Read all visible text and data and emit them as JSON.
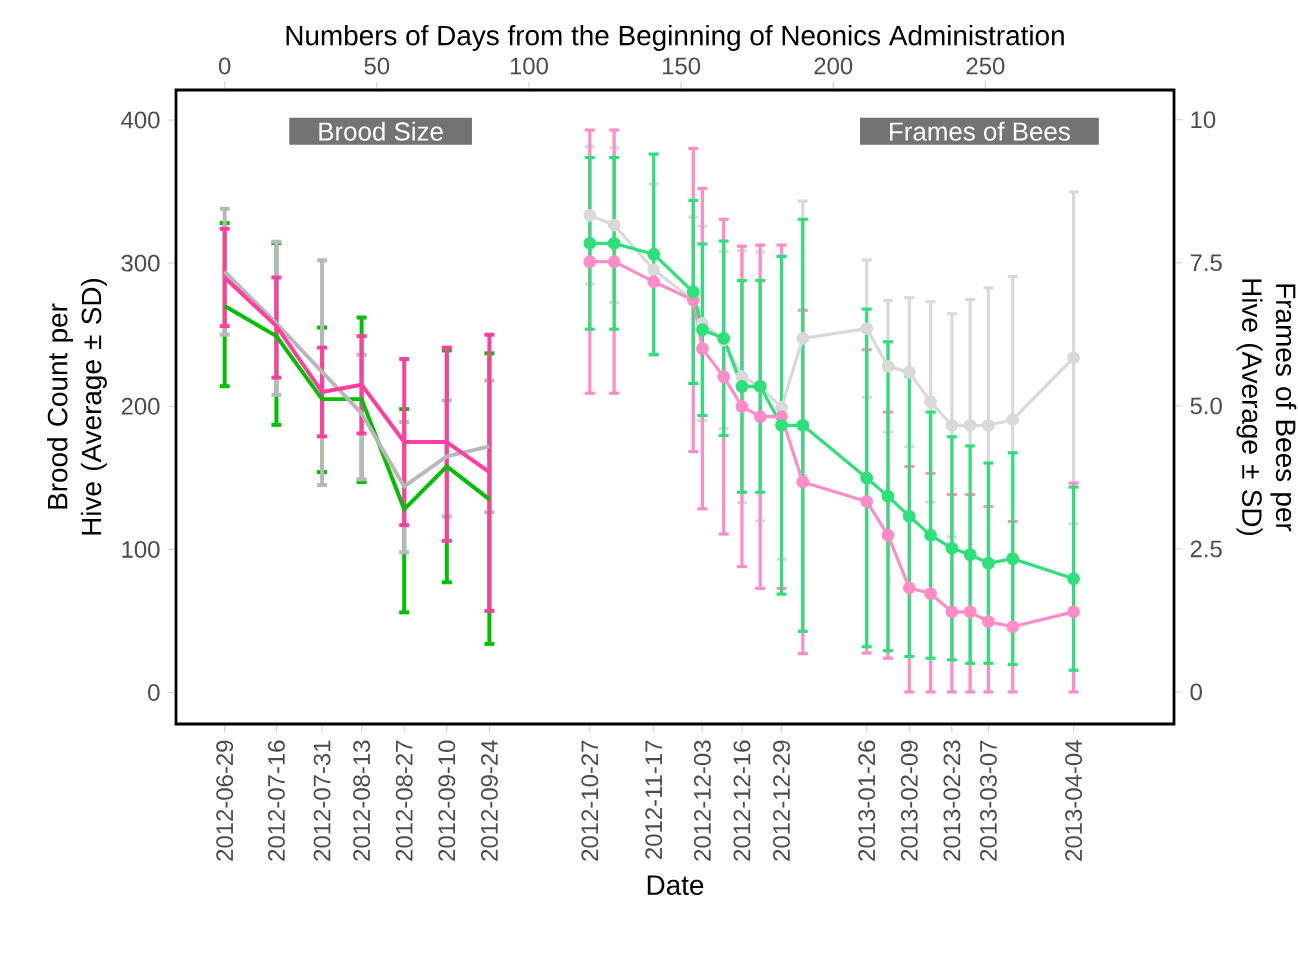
{
  "chart_data": {
    "type": "line",
    "xlabel": "Date",
    "ylabel": "Brood Count per Hive (Average ± SD)",
    "y2label": "Frames of Bees per Hive (Average ± SD)",
    "x2label": "Numbers of Days from the Beginning of Neonics Administration",
    "annotations": [
      "Brood Size",
      "Frames of Bees"
    ],
    "xlim": [
      "2012-06-13",
      "2013-05-07"
    ],
    "xticks": [
      "2012-06-29",
      "2012-07-16",
      "2012-07-31",
      "2012-08-13",
      "2012-08-27",
      "2012-09-10",
      "2012-09-24",
      "2012-10-27",
      "2012-11-17",
      "2012-12-03",
      "2012-12-16",
      "2012-12-29",
      "2013-01-26",
      "2013-02-09",
      "2013-02-23",
      "2013-03-07",
      "2013-04-04"
    ],
    "x2lim": [
      -16,
      312
    ],
    "x2ticks": [
      0,
      50,
      100,
      150,
      200,
      250
    ],
    "ylim": [
      -22,
      421
    ],
    "yticks": [
      0,
      100,
      200,
      300,
      400
    ],
    "y2lim": [
      -0.56,
      10.52
    ],
    "y2ticks": [
      0,
      {
        "value": 2.5,
        "label": "2.5"
      },
      {
        "value": 5,
        "label": "5.0"
      },
      {
        "value": 7.5,
        "label": "7.5"
      },
      10
    ],
    "series": [
      {
        "color": "#00c000",
        "axis": "y",
        "marker": "none",
        "x": [
          "2012-06-29",
          "2012-07-16",
          "2012-07-31",
          "2012-08-13",
          "2012-08-27",
          "2012-09-10",
          "2012-09-24"
        ],
        "values": [
          270,
          249,
          205,
          205,
          128,
          158,
          135
        ],
        "errors": [
          [
            214,
            328
          ],
          [
            187,
            314
          ],
          [
            154,
            255
          ],
          [
            147,
            262
          ],
          [
            56,
            198
          ],
          [
            77,
            239
          ],
          [
            34,
            237
          ]
        ]
      },
      {
        "color": "#b8b8b8",
        "axis": "y",
        "marker": "none",
        "x": [
          "2012-06-29",
          "2012-07-16",
          "2012-07-31",
          "2012-08-13",
          "2012-08-27",
          "2012-09-10",
          "2012-09-24"
        ],
        "values": [
          294,
          258,
          224,
          195,
          144,
          165,
          172
        ],
        "errors": [
          [
            250,
            338
          ],
          [
            208,
            315
          ],
          [
            145,
            302
          ],
          [
            149,
            236
          ],
          [
            98,
            189
          ],
          [
            123,
            204
          ],
          [
            126,
            218
          ]
        ]
      },
      {
        "color": "#ff3fa0",
        "axis": "y",
        "marker": "none",
        "x": [
          "2012-06-29",
          "2012-07-16",
          "2012-07-31",
          "2012-08-13",
          "2012-08-27",
          "2012-09-10",
          "2012-09-24"
        ],
        "values": [
          290,
          256,
          210,
          215,
          175,
          175,
          154
        ],
        "errors": [
          [
            256,
            324
          ],
          [
            220,
            290
          ],
          [
            179,
            241
          ],
          [
            181,
            249
          ],
          [
            117,
            233
          ],
          [
            106,
            241
          ],
          [
            57,
            250
          ]
        ]
      },
      {
        "color": "#d9d9d9",
        "axis": "y2",
        "marker": "circle",
        "x": [
          "2012-10-27",
          "2012-11-04",
          "2012-11-17",
          "2012-11-30",
          "2012-12-03",
          "2012-12-10",
          "2012-12-16",
          "2012-12-22",
          "2012-12-29",
          "2013-01-05",
          "2013-01-26",
          "2013-02-02",
          "2013-02-09",
          "2013-02-16",
          "2013-02-23",
          "2013-03-01",
          "2013-03-07",
          "2013-03-15",
          "2013-04-04"
        ],
        "values": [
          8.33,
          8.16,
          7.38,
          6.85,
          6.44,
          6.15,
          5.51,
          5.34,
          4.97,
          6.18,
          6.35,
          5.69,
          5.59,
          5.07,
          4.66,
          4.66,
          4.66,
          4.76,
          5.84
        ],
        "errors": [
          1.2,
          1.35,
          1.5,
          1.45,
          1.7,
          1.55,
          2.2,
          2.35,
          2.65,
          2.4,
          1.2,
          1.15,
          1.3,
          1.75,
          1.95,
          2.2,
          2.4,
          2.5,
          2.9
        ]
      },
      {
        "color": "#ff8cc6",
        "axis": "y2",
        "marker": "circle",
        "x": [
          "2012-10-27",
          "2012-11-04",
          "2012-11-17",
          "2012-11-30",
          "2012-12-03",
          "2012-12-10",
          "2012-12-16",
          "2012-12-22",
          "2012-12-29",
          "2013-01-05",
          "2013-01-26",
          "2013-02-02",
          "2013-02-09",
          "2013-02-16",
          "2013-02-23",
          "2013-03-01",
          "2013-03-07",
          "2013-03-15",
          "2013-04-04"
        ],
        "values": [
          7.52,
          7.52,
          7.17,
          6.85,
          6.0,
          5.51,
          4.99,
          4.81,
          4.81,
          3.67,
          3.33,
          2.74,
          1.82,
          1.72,
          1.4,
          1.4,
          1.23,
          1.14,
          1.4
        ],
        "errors": [
          2.3,
          2.3,
          null,
          2.65,
          2.8,
          2.75,
          2.8,
          3.0,
          3.0,
          3.0,
          2.65,
          2.15,
          [
            0,
            3.94
          ],
          [
            0,
            3.82
          ],
          [
            0,
            3.45
          ],
          [
            0,
            3.45
          ],
          [
            0,
            3.24
          ],
          [
            0,
            2.98
          ],
          [
            0,
            3.65
          ]
        ]
      },
      {
        "color": "#2ee07a",
        "axis": "y2",
        "marker": "circle",
        "x": [
          "2012-10-27",
          "2012-11-04",
          "2012-11-17",
          "2012-11-30",
          "2012-12-03",
          "2012-12-10",
          "2012-12-16",
          "2012-12-22",
          "2012-12-29",
          "2013-01-05",
          "2013-01-26",
          "2013-02-02",
          "2013-02-09",
          "2013-02-16",
          "2013-02-23",
          "2013-03-01",
          "2013-03-07",
          "2013-03-15",
          "2013-04-04"
        ],
        "values": [
          7.84,
          7.84,
          7.65,
          6.99,
          6.33,
          6.18,
          5.34,
          5.34,
          4.66,
          4.66,
          3.74,
          3.42,
          3.07,
          2.74,
          2.51,
          2.4,
          2.25,
          2.33,
          1.98
        ],
        "errors": [
          1.5,
          1.5,
          1.75,
          1.6,
          1.5,
          1.7,
          1.85,
          1.85,
          2.95,
          3.6,
          2.95,
          2.7,
          2.45,
          2.15,
          1.95,
          1.9,
          1.75,
          1.85,
          1.6
        ]
      }
    ]
  }
}
